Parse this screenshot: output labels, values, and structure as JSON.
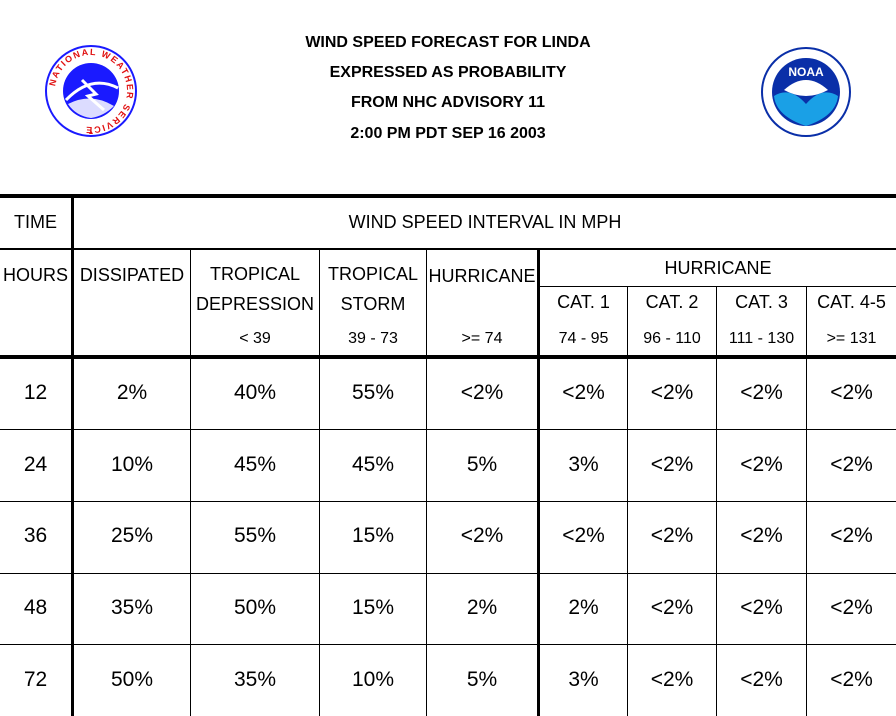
{
  "title": {
    "line1": "WIND SPEED FORECAST FOR LINDA",
    "line2": "EXPRESSED AS PROBABILITY",
    "line3": "FROM NHC ADVISORY   11",
    "line4": "2:00 PM PDT SEP 16 2003"
  },
  "logos": {
    "nws": {
      "text": "NATIONAL WEATHER SERVICE",
      "color": "#1a1aff",
      "accent": "#e01010"
    },
    "noaa": {
      "name": "NOAA",
      "color": "#0a2fa8",
      "accent": "#1aa0e6"
    }
  },
  "table": {
    "time_label": "TIME",
    "interval_label": "WIND SPEED INTERVAL IN MPH",
    "hours_label": "HOURS",
    "dissipated_label": "DISSIPATED",
    "td_label1": "TROPICAL",
    "td_label2": "DEPRESSION",
    "td_range": "< 39",
    "ts_label1": "TROPICAL",
    "ts_label2": "STORM",
    "ts_range": "39 - 73",
    "hu_label": "HURRICANE",
    "hu_range": ">= 74",
    "hu_group_label": "HURRICANE",
    "cats": [
      {
        "label": "CAT. 1",
        "range": "74 - 95"
      },
      {
        "label": "CAT. 2",
        "range": "96 - 110"
      },
      {
        "label": "CAT. 3",
        "range": "111 - 130"
      },
      {
        "label": "CAT. 4-5",
        "range": ">= 131"
      }
    ],
    "rows": [
      {
        "hours": "12",
        "values": [
          "2%",
          "40%",
          "55%",
          "<2%",
          "<2%",
          "<2%",
          "<2%",
          "<2%"
        ]
      },
      {
        "hours": "24",
        "values": [
          "10%",
          "45%",
          "45%",
          "5%",
          "3%",
          "<2%",
          "<2%",
          "<2%"
        ]
      },
      {
        "hours": "36",
        "values": [
          "25%",
          "55%",
          "15%",
          "<2%",
          "<2%",
          "<2%",
          "<2%",
          "<2%"
        ]
      },
      {
        "hours": "48",
        "values": [
          "35%",
          "50%",
          "15%",
          "2%",
          "2%",
          "<2%",
          "<2%",
          "<2%"
        ]
      },
      {
        "hours": "72",
        "values": [
          "50%",
          "35%",
          "10%",
          "5%",
          "3%",
          "<2%",
          "<2%",
          "<2%"
        ]
      }
    ]
  }
}
